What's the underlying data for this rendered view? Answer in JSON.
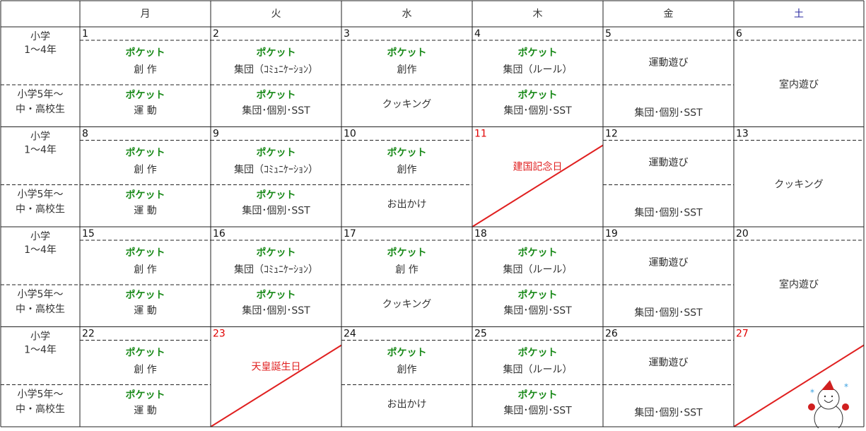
{
  "header": {
    "days": [
      "月",
      "火",
      "水",
      "木",
      "金",
      "土"
    ],
    "day_colors": [
      "#333333",
      "#333333",
      "#333333",
      "#333333",
      "#333333",
      "#2a2aa0"
    ]
  },
  "groups": [
    {
      "line1": "小学",
      "line2": "1〜4年"
    },
    {
      "line1": "小学5年〜",
      "line2": "中・高校生"
    }
  ],
  "weeks": [
    {
      "days": [
        {
          "date": "1",
          "upper": {
            "title": "ポケット",
            "text": "創 作"
          },
          "lower": {
            "title": "ポケット",
            "text": "運 動"
          }
        },
        {
          "date": "2",
          "upper": {
            "title": "ポケット",
            "text": "集団（ｺﾐｭﾆｹｰｼｮﾝ）"
          },
          "lower": {
            "title": "ポケット",
            "text": "集団･個別･SST"
          }
        },
        {
          "date": "3",
          "upper": {
            "title": "ポケット",
            "text": "創作"
          },
          "lower": {
            "text": "クッキング"
          }
        },
        {
          "date": "4",
          "upper": {
            "title": "ポケット",
            "text": "集団（ルール）"
          },
          "lower": {
            "title": "ポケット",
            "text": "集団･個別･SST"
          }
        },
        {
          "date": "5",
          "upper": {
            "text": "運動遊び"
          },
          "lower": {
            "text": "集団･個別･SST"
          }
        },
        {
          "date": "6",
          "all": "室内遊び"
        }
      ]
    },
    {
      "days": [
        {
          "date": "8",
          "upper": {
            "title": "ポケット",
            "text": "創 作"
          },
          "lower": {
            "title": "ポケット",
            "text": "運 動"
          }
        },
        {
          "date": "9",
          "upper": {
            "title": "ポケット",
            "text": "集団（ｺﾐｭﾆｹｰｼｮﾝ）"
          },
          "lower": {
            "title": "ポケット",
            "text": "集団･個別･SST"
          }
        },
        {
          "date": "10",
          "upper": {
            "title": "ポケット",
            "text": "創作"
          },
          "lower": {
            "text": "お出かけ"
          }
        },
        {
          "date": "11",
          "date_color": "#e00000",
          "holiday": "建国記念日",
          "diagonal": true
        },
        {
          "date": "12",
          "upper": {
            "text": "運動遊び"
          },
          "lower": {
            "text": "集団･個別･SST"
          }
        },
        {
          "date": "13",
          "all": "クッキング"
        }
      ]
    },
    {
      "days": [
        {
          "date": "15",
          "upper": {
            "title": "ポケット",
            "text": "創 作"
          },
          "lower": {
            "title": "ポケット",
            "text": "運 動"
          }
        },
        {
          "date": "16",
          "upper": {
            "title": "ポケット",
            "text": "集団（ｺﾐｭﾆｹｰｼｮﾝ）"
          },
          "lower": {
            "title": "ポケット",
            "text": "集団･個別･SST"
          }
        },
        {
          "date": "17",
          "upper": {
            "title": "ポケット",
            "text": "創 作"
          },
          "lower": {
            "text": "クッキング"
          }
        },
        {
          "date": "18",
          "upper": {
            "title": "ポケット",
            "text": "集団（ルール）"
          },
          "lower": {
            "title": "ポケット",
            "text": "集団･個別･SST"
          }
        },
        {
          "date": "19",
          "upper": {
            "text": "運動遊び"
          },
          "lower": {
            "text": "集団･個別･SST"
          }
        },
        {
          "date": "20",
          "all": "室内遊び"
        }
      ]
    },
    {
      "days": [
        {
          "date": "22",
          "upper": {
            "title": "ポケット",
            "text": "創 作"
          },
          "lower": {
            "title": "ポケット",
            "text": "運 動"
          }
        },
        {
          "date": "23",
          "date_color": "#e00000",
          "holiday": "天皇誕生日",
          "diagonal": true
        },
        {
          "date": "24",
          "upper": {
            "title": "ポケット",
            "text": "創作"
          },
          "lower": {
            "text": "お出かけ"
          }
        },
        {
          "date": "25",
          "upper": {
            "title": "ポケット",
            "text": "集団（ルール）"
          },
          "lower": {
            "title": "ポケット",
            "text": "集団･個別･SST"
          }
        },
        {
          "date": "26",
          "upper": {
            "text": "運動遊び"
          },
          "lower": {
            "text": "集団･個別･SST"
          }
        },
        {
          "date": "27",
          "date_color": "#e00000",
          "diagonal": true,
          "snowman": true
        }
      ]
    }
  ]
}
